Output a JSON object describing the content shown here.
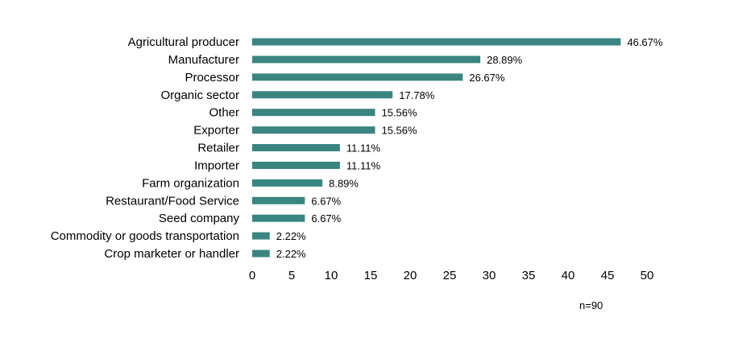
{
  "chart_data": {
    "type": "bar",
    "orientation": "horizontal",
    "categories": [
      "Agricultural producer",
      "Manufacturer",
      "Processor",
      "Organic sector",
      "Other",
      "Exporter",
      "Retailer",
      "Importer",
      "Farm organization",
      "Restaurant/Food Service",
      "Seed company",
      "Commodity or goods transportation",
      "Crop marketer or handler"
    ],
    "values": [
      46.67,
      28.89,
      26.67,
      17.78,
      15.56,
      15.56,
      11.11,
      11.11,
      8.89,
      6.67,
      6.67,
      2.22,
      2.22
    ],
    "data_labels": [
      "46.67%",
      "28.89%",
      "26.67%",
      "17.78%",
      "15.56%",
      "15.56%",
      "11.11%",
      "11.11%",
      "8.89%",
      "6.67%",
      "6.67%",
      "2.22%",
      "2.22%"
    ],
    "xticks": [
      0,
      5,
      10,
      15,
      20,
      25,
      30,
      35,
      40,
      45,
      50
    ],
    "xlim": [
      0,
      50
    ],
    "title": "",
    "xlabel": "",
    "ylabel": "",
    "grid": false,
    "legend": "none",
    "bar_color": "#3a8580",
    "note": "n=90"
  }
}
